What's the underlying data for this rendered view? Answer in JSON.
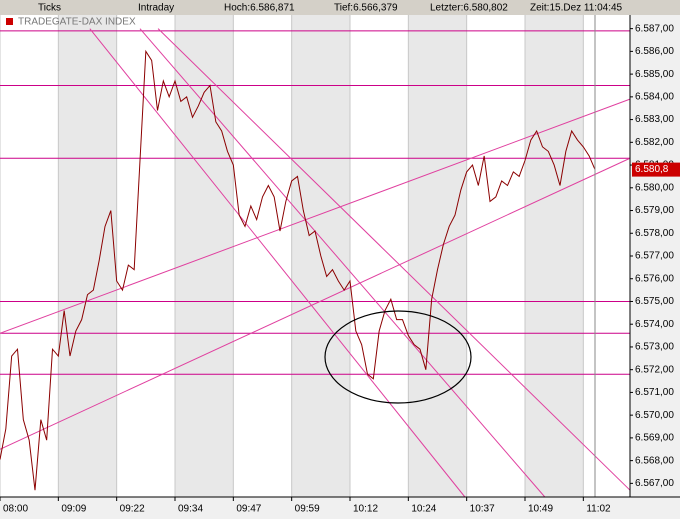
{
  "chart_data": {
    "type": "line",
    "header": {
      "ticks": "Ticks",
      "period": "Intraday",
      "high": "Hoch:6.586,871",
      "low": "Tief:6.566,379",
      "last": "Letzter:6.580,802",
      "time": "Zeit:15.Dez 11:04:45"
    },
    "series": [
      {
        "name": "TRADEGATE-DAX INDEX",
        "color": "#8b0000",
        "values": [
          6568.05,
          6569.4,
          6572.6,
          6572.9,
          6569.8,
          6568.9,
          6566.7,
          6569.8,
          6568.9,
          6572.9,
          6572.6,
          6574.6,
          6572.6,
          6573.7,
          6574.2,
          6575.3,
          6575.5,
          6576.8,
          6578.3,
          6579.0,
          6575.9,
          6575.5,
          6576.6,
          6576.4,
          6581.2,
          6586.0,
          6585.6,
          6583.4,
          6584.7,
          6584.0,
          6584.7,
          6583.8,
          6584.0,
          6583.1,
          6583.6,
          6584.2,
          6584.5,
          6582.9,
          6582.5,
          6581.6,
          6581.0,
          6578.8,
          6578.3,
          6579.2,
          6578.6,
          6579.6,
          6580.1,
          6579.6,
          6578.1,
          6579.4,
          6580.3,
          6580.5,
          6579.0,
          6577.9,
          6578.1,
          6577.0,
          6576.1,
          6576.4,
          6575.9,
          6575.5,
          6575.9,
          6573.7,
          6573.1,
          6571.8,
          6571.6,
          6573.7,
          6574.6,
          6575.1,
          6574.2,
          6574.2,
          6573.5,
          6573.1,
          6572.9,
          6572.0,
          6575.1,
          6576.4,
          6577.5,
          6578.3,
          6578.8,
          6579.9,
          6580.7,
          6581.0,
          6580.1,
          6581.4,
          6579.4,
          6579.6,
          6580.3,
          6580.1,
          6580.7,
          6580.5,
          6581.2,
          6582.1,
          6582.5,
          6581.8,
          6581.6,
          6581.0,
          6580.1,
          6581.6,
          6582.5,
          6582.1,
          6581.8,
          6581.4,
          6580.8
        ]
      }
    ],
    "last_price": {
      "value": 6580.8,
      "label": "6.580,8"
    },
    "hlines": [
      6586.9,
      6584.5,
      6581.3,
      6575.0,
      6573.6,
      6571.8
    ],
    "hline_color": "#cc0088",
    "trendlines": [
      {
        "x": [
          0,
          108
        ],
        "y": [
          6573.6,
          6583.9
        ]
      },
      {
        "x": [
          0,
          108
        ],
        "y": [
          6568.5,
          6581.3
        ]
      },
      {
        "x": [
          15.4,
          79.7
        ],
        "y": [
          6587.0,
          6566.4
        ]
      },
      {
        "x": [
          24.0,
          93.4
        ],
        "y": [
          6587.0,
          6566.4
        ]
      },
      {
        "x": [
          27.1,
          108
        ],
        "y": [
          6587.0,
          6566.7
        ]
      }
    ],
    "trendline_color": "#e0409f",
    "xlim": [
      0,
      108
    ],
    "xticks": [
      {
        "value": 0,
        "label": "08:00"
      },
      {
        "value": 10,
        "label": "09:09"
      },
      {
        "value": 20,
        "label": "09:22"
      },
      {
        "value": 30,
        "label": "09:34"
      },
      {
        "value": 40,
        "label": "09:47"
      },
      {
        "value": 50,
        "label": "09:59"
      },
      {
        "value": 60,
        "label": "10:12"
      },
      {
        "value": 70,
        "label": "10:24"
      },
      {
        "value": 80,
        "label": "10:37"
      },
      {
        "value": 90,
        "label": "10:49"
      },
      {
        "value": 100,
        "label": "11:02"
      }
    ],
    "ylim": [
      6566.4,
      6587.6
    ],
    "yticks": [
      {
        "value": 6567,
        "label": "6.567,00"
      },
      {
        "value": 6568,
        "label": "6.568,00"
      },
      {
        "value": 6569,
        "label": "6.569,00"
      },
      {
        "value": 6570,
        "label": "6.570,00"
      },
      {
        "value": 6571,
        "label": "6.571,00"
      },
      {
        "value": 6572,
        "label": "6.572,00"
      },
      {
        "value": 6573,
        "label": "6.573,00"
      },
      {
        "value": 6574,
        "label": "6.574,00"
      },
      {
        "value": 6575,
        "label": "6.575,00"
      },
      {
        "value": 6576,
        "label": "6.576,00"
      },
      {
        "value": 6577,
        "label": "6.577,00"
      },
      {
        "value": 6578,
        "label": "6.578,00"
      },
      {
        "value": 6579,
        "label": "6.579,00"
      },
      {
        "value": 6580,
        "label": "6.580,00"
      },
      {
        "value": 6581,
        "label": "6.581,00"
      },
      {
        "value": 6582,
        "label": "6.582,00"
      },
      {
        "value": 6583,
        "label": "6.583,00"
      },
      {
        "value": 6584,
        "label": "6.584,00"
      },
      {
        "value": 6585,
        "label": "6.585,00"
      },
      {
        "value": 6586,
        "label": "6.586,00"
      },
      {
        "value": 6587,
        "label": "6.587,00"
      }
    ]
  }
}
